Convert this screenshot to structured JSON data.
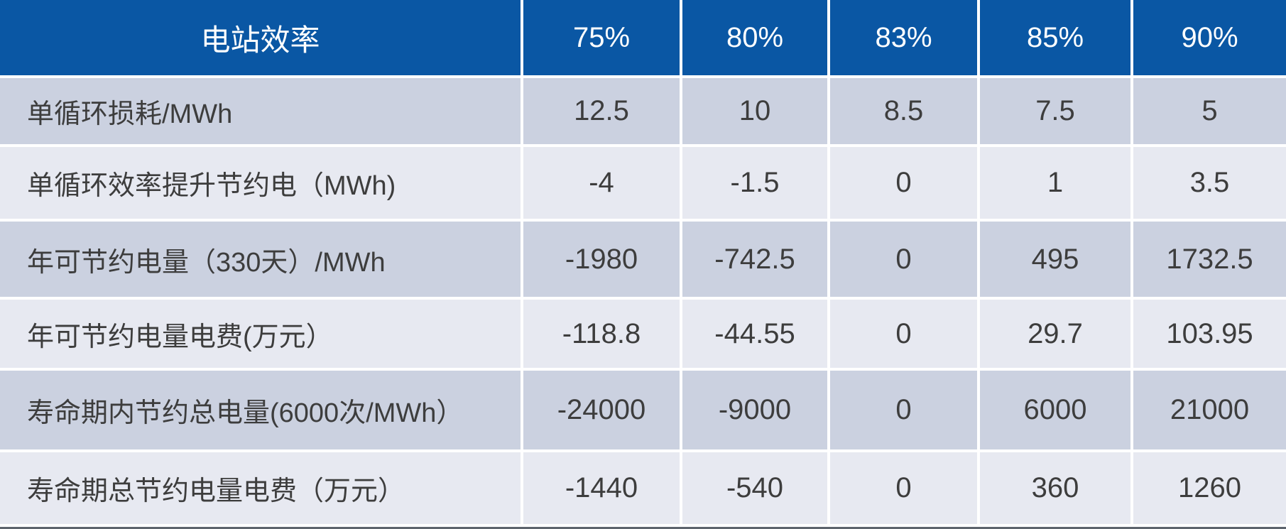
{
  "chart_data": {
    "type": "table",
    "header": {
      "title": "电站效率",
      "columns": [
        "75%",
        "80%",
        "83%",
        "85%",
        "90%"
      ]
    },
    "rows": [
      {
        "label": "单循环损耗/MWh",
        "values": [
          "12.5",
          "10",
          "8.5",
          "7.5",
          "5"
        ]
      },
      {
        "label": "单循环效率提升节约电（MWh)",
        "values": [
          "-4",
          "-1.5",
          "0",
          "1",
          "3.5"
        ]
      },
      {
        "label": "年可节约电量（330天）/MWh",
        "values": [
          "-1980",
          "-742.5",
          "0",
          "495",
          "1732.5"
        ]
      },
      {
        "label": "年可节约电量电费(万元）",
        "values": [
          "-118.8",
          "-44.55",
          "0",
          "29.7",
          "103.95"
        ]
      },
      {
        "label": "寿命期内节约总电量(6000次/MWh）",
        "values": [
          "-24000",
          "-9000",
          "0",
          "6000",
          "21000"
        ]
      },
      {
        "label": "寿命期总节约电量电费（万元）",
        "values": [
          "-1440",
          "-540",
          "0",
          "360",
          "1260"
        ]
      }
    ],
    "layout": {
      "banded_rows": true,
      "header_position": "top",
      "label_column_align": "left",
      "value_align": "center"
    }
  },
  "colors": {
    "header_bg": "#0a57a4",
    "header_text": "#ffffff",
    "band_dark": "#cbd1e0",
    "band_light": "#e7e9f1",
    "body_text": "#3d3d3d",
    "divider": "#ffffff",
    "footer_bar": "#5d646d"
  }
}
